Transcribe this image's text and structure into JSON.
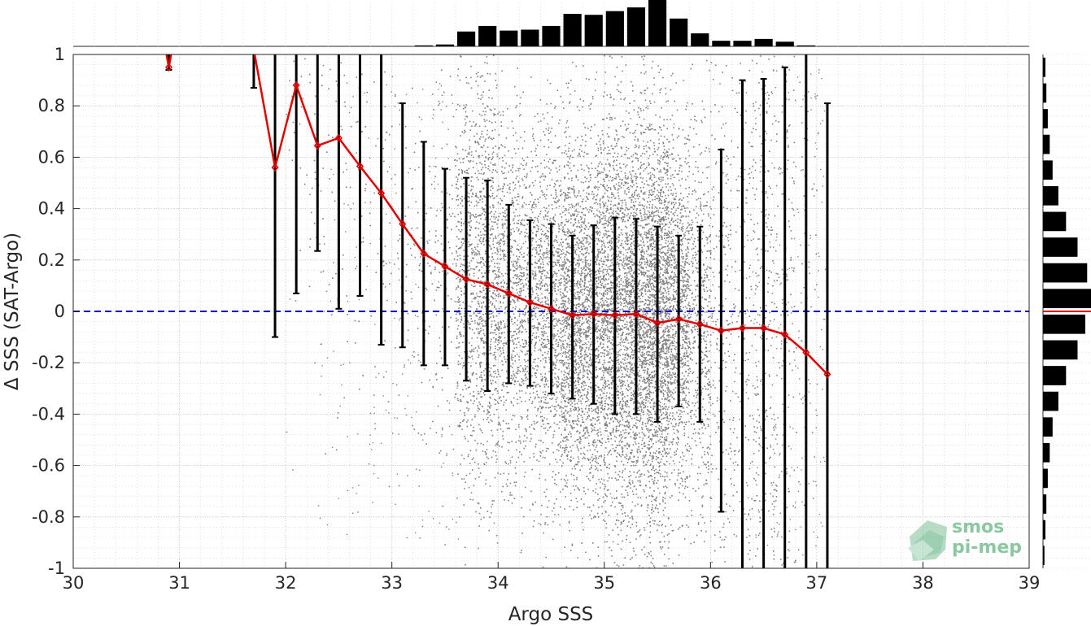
{
  "chart_data": {
    "type": "scatter",
    "xlabel": "Argo SSS",
    "ylabel": "Δ SSS (SAT-Argo)",
    "xlim": [
      30,
      39
    ],
    "ylim": [
      -1,
      1
    ],
    "x_ticks": [
      30,
      31,
      32,
      33,
      34,
      35,
      36,
      37,
      38,
      39
    ],
    "y_ticks": [
      -1,
      -0.8,
      -0.6,
      -0.4,
      -0.2,
      0,
      0.2,
      0.4,
      0.6,
      0.8,
      1
    ],
    "x_tick_labels": [
      "30",
      "31",
      "32",
      "33",
      "34",
      "35",
      "36",
      "37",
      "38",
      "39"
    ],
    "y_tick_labels": [
      "-1",
      "-0.8",
      "-0.6",
      "-0.4",
      "-0.2",
      "0",
      "0.2",
      "0.4",
      "0.6",
      "0.8",
      "1"
    ],
    "grid": true,
    "zero_line": {
      "y": 0,
      "color": "#0000cc",
      "style": "dashed"
    },
    "scatter_color": "#808080",
    "mean_color": "#e00000",
    "errorbar_color": "#000000",
    "binned_mean": {
      "x": [
        30.9,
        31.7,
        31.9,
        32.1,
        32.3,
        32.5,
        32.7,
        32.9,
        33.1,
        33.3,
        33.5,
        33.7,
        33.9,
        34.1,
        34.3,
        34.5,
        34.7,
        34.9,
        35.1,
        35.3,
        35.5,
        35.7,
        35.9,
        36.1,
        36.3,
        36.5,
        36.7,
        36.9,
        37.1
      ],
      "mean": [
        0.95,
        1.02,
        0.56,
        0.88,
        0.645,
        0.675,
        0.565,
        0.46,
        0.34,
        0.225,
        0.175,
        0.125,
        0.105,
        0.07,
        0.035,
        0.01,
        -0.015,
        -0.01,
        -0.015,
        -0.01,
        -0.045,
        -0.03,
        -0.05,
        -0.075,
        -0.065,
        -0.065,
        -0.09,
        -0.16,
        -0.245
      ],
      "lower": [
        0.94,
        0.87,
        -0.1,
        0.07,
        0.235,
        0.01,
        0.06,
        -0.13,
        -0.14,
        -0.21,
        -0.21,
        -0.27,
        -0.31,
        -0.28,
        -0.29,
        -0.32,
        -0.34,
        -0.36,
        -0.4,
        -0.4,
        -0.43,
        -0.37,
        -0.43,
        -0.78,
        -1.0,
        -1.0,
        -1.0,
        -1.0,
        -1.0
      ],
      "upper": [
        1.0,
        1.0,
        1.0,
        1.0,
        1.0,
        1.0,
        1.0,
        1.0,
        0.81,
        0.66,
        0.555,
        0.52,
        0.51,
        0.415,
        0.355,
        0.34,
        0.295,
        0.335,
        0.365,
        0.36,
        0.33,
        0.295,
        0.33,
        0.63,
        0.9,
        0.905,
        0.95,
        1.0,
        0.81
      ]
    },
    "hist_x": {
      "bins": [
        32.1,
        32.3,
        32.5,
        32.7,
        32.9,
        33.1,
        33.3,
        33.5,
        33.7,
        33.9,
        34.1,
        34.3,
        34.5,
        34.7,
        34.9,
        35.1,
        35.3,
        35.5,
        35.7,
        35.9,
        36.1,
        36.3,
        36.5,
        36.7,
        36.9
      ],
      "relative_heights": [
        0.0,
        0.0,
        0.0,
        0.0,
        0.0,
        0.0,
        0.02,
        0.04,
        0.32,
        0.44,
        0.34,
        0.36,
        0.44,
        0.7,
        0.68,
        0.76,
        0.84,
        1.0,
        0.6,
        0.28,
        0.12,
        0.12,
        0.16,
        0.1,
        0.02
      ]
    },
    "hist_y": {
      "bins": [
        -0.95,
        -0.85,
        -0.75,
        -0.65,
        -0.55,
        -0.45,
        -0.35,
        -0.25,
        -0.15,
        -0.05,
        0.05,
        0.15,
        0.25,
        0.35,
        0.45,
        0.55,
        0.65,
        0.75,
        0.85,
        0.95
      ],
      "relative_heights": [
        0.03,
        0.05,
        0.07,
        0.1,
        0.14,
        0.2,
        0.32,
        0.48,
        0.72,
        0.88,
        1.0,
        0.92,
        0.72,
        0.48,
        0.32,
        0.2,
        0.14,
        0.1,
        0.07,
        0.05
      ]
    }
  },
  "logo": {
    "line1": "smos",
    "line2": "pi-mep"
  }
}
